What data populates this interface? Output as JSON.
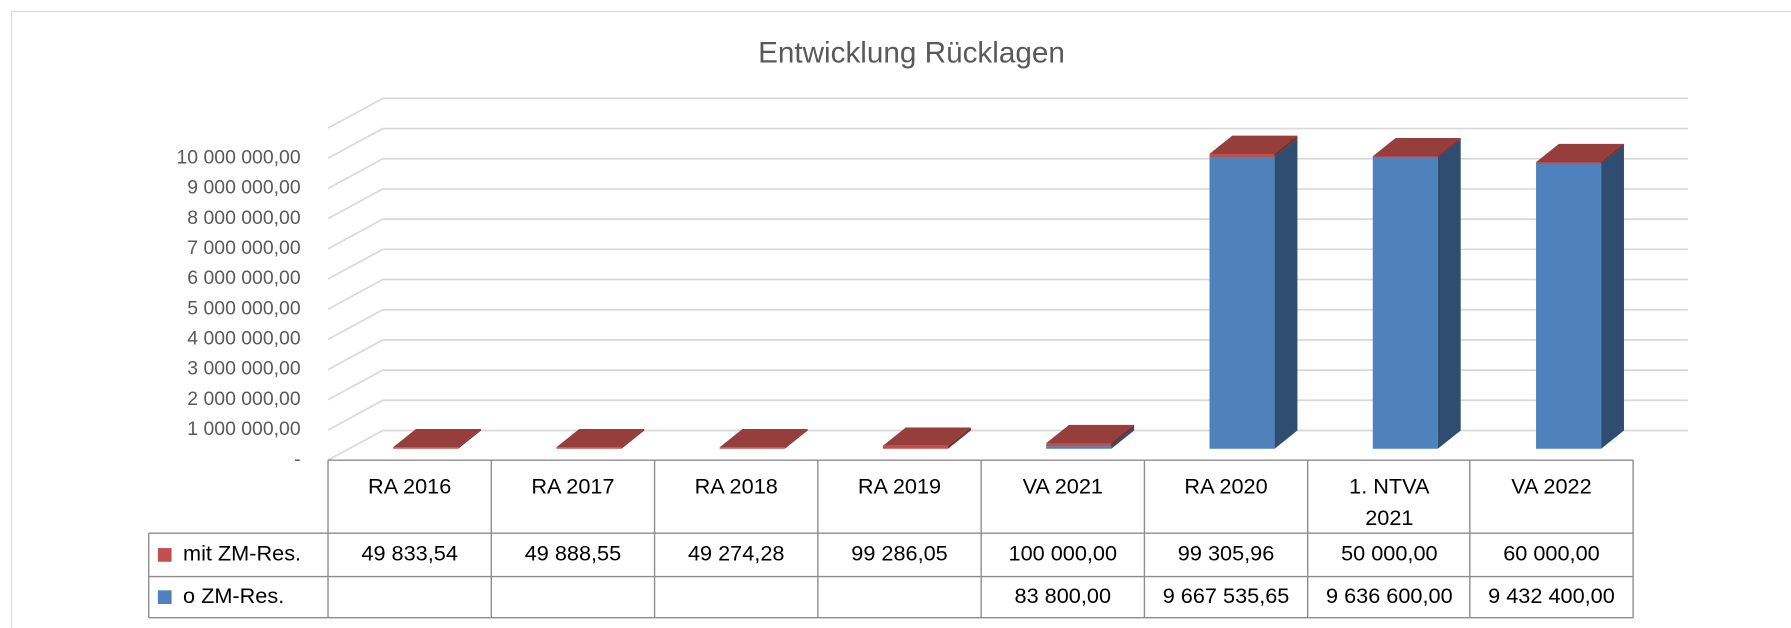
{
  "chart_data": {
    "type": "bar3d_stacked",
    "title": "Entwicklung Rücklagen",
    "categories": [
      "RA 2016",
      "RA 2017",
      "RA 2018",
      "RA 2019",
      "VA 2021",
      "RA 2020",
      "1. NTVA 2021",
      "VA 2022"
    ],
    "series": [
      {
        "name": "mit ZM-Res.",
        "color": "#c0504d",
        "values": [
          49833.54,
          49888.55,
          49274.28,
          99286.05,
          100000,
          99305.96,
          50000,
          60000
        ],
        "value_labels": [
          "49 833,54",
          "49 888,55",
          "49 274,28",
          "99 286,05",
          "100 000,00",
          "99 305,96",
          "50 000,00",
          "60 000,00"
        ]
      },
      {
        "name": "o ZM-Res.",
        "color": "#4f81bd",
        "values": [
          null,
          null,
          null,
          null,
          83800,
          9667535.65,
          9636600,
          9432400
        ],
        "value_labels": [
          null,
          null,
          null,
          null,
          "83 800,00",
          "9 667 535,65",
          "9 636 600,00",
          "9 432 400,00"
        ]
      }
    ],
    "ylim": [
      0,
      11000000
    ],
    "yticks": [
      {
        "value": 0,
        "label": "-"
      },
      {
        "value": 1000000,
        "label": "1 000 000,00"
      },
      {
        "value": 2000000,
        "label": "2 000 000,00"
      },
      {
        "value": 3000000,
        "label": "3 000 000,00"
      },
      {
        "value": 4000000,
        "label": "4 000 000,00"
      },
      {
        "value": 5000000,
        "label": "5 000 000,00"
      },
      {
        "value": 6000000,
        "label": "6 000 000,00"
      },
      {
        "value": 7000000,
        "label": "7 000 000,00"
      },
      {
        "value": 8000000,
        "label": "8 000 000,00"
      },
      {
        "value": 9000000,
        "label": "9 000 000,00"
      },
      {
        "value": 10000000,
        "label": "10 000 000,00"
      }
    ],
    "grid": true,
    "stack_order": [
      1,
      0
    ]
  }
}
